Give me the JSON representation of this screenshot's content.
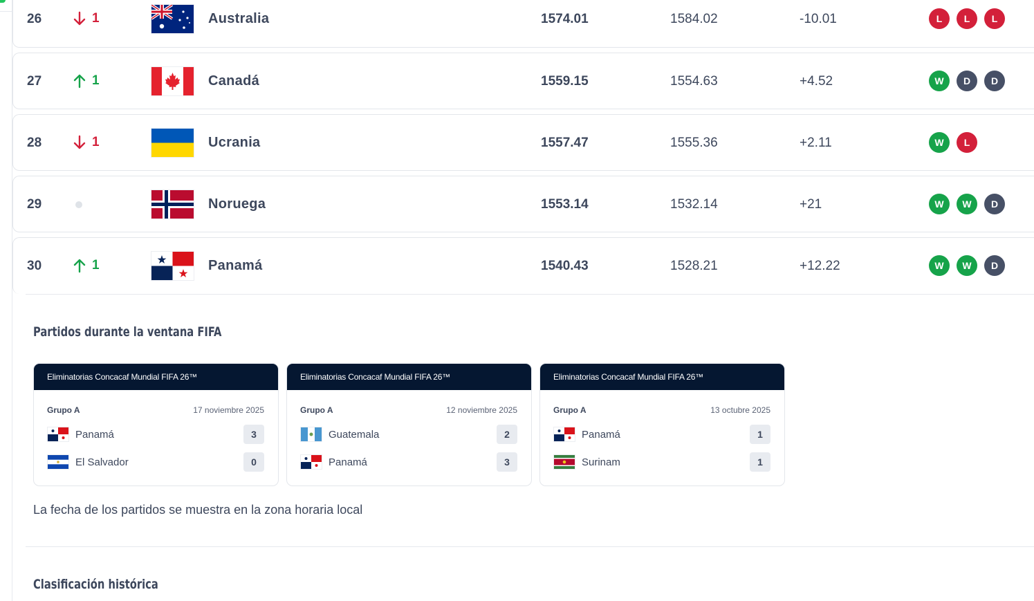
{
  "ranking_rows": [
    {
      "rank": "26",
      "move_dir": "down",
      "move_val": "1",
      "flag": "australia-flag",
      "team": "Australia",
      "points": "1574.01",
      "prev_points": "1584.02",
      "diff": "-10.01",
      "form": [
        "L",
        "L",
        "L"
      ]
    },
    {
      "rank": "27",
      "move_dir": "up",
      "move_val": "1",
      "flag": "canada-flag",
      "team": "Canadá",
      "points": "1559.15",
      "prev_points": "1554.63",
      "diff": "+4.52",
      "form": [
        "W",
        "D",
        "D"
      ]
    },
    {
      "rank": "28",
      "move_dir": "down",
      "move_val": "1",
      "flag": "ukraine-flag",
      "team": "Ucrania",
      "points": "1557.47",
      "prev_points": "1555.36",
      "diff": "+2.11",
      "form": [
        "W",
        "L"
      ]
    },
    {
      "rank": "29",
      "move_dir": "same",
      "move_val": "",
      "flag": "norway-flag",
      "team": "Noruega",
      "points": "1553.14",
      "prev_points": "1532.14",
      "diff": "+21",
      "form": [
        "W",
        "W",
        "D"
      ]
    },
    {
      "rank": "30",
      "move_dir": "up",
      "move_val": "1",
      "flag": "panama-flag",
      "team": "Panamá",
      "points": "1540.43",
      "prev_points": "1528.21",
      "diff": "+12.22",
      "form": [
        "W",
        "W",
        "D"
      ]
    }
  ],
  "matches_section": {
    "title": "Partidos durante la ventana FIFA",
    "matches": [
      {
        "competition": "Eliminatorias Concacaf Mundial FIFA 26™",
        "group": "Grupo A",
        "date": "17 noviembre 2025",
        "home": {
          "name": "Panamá",
          "flag": "panama-flag",
          "score": "3"
        },
        "away": {
          "name": "El Salvador",
          "flag": "el-salvador-flag",
          "score": "0"
        }
      },
      {
        "competition": "Eliminatorias Concacaf Mundial FIFA 26™",
        "group": "Grupo A",
        "date": "12 noviembre 2025",
        "home": {
          "name": "Guatemala",
          "flag": "guatemala-flag",
          "score": "2"
        },
        "away": {
          "name": "Panamá",
          "flag": "panama-flag",
          "score": "3"
        }
      },
      {
        "competition": "Eliminatorias Concacaf Mundial FIFA 26™",
        "group": "Grupo A",
        "date": "13 octubre 2025",
        "home": {
          "name": "Panamá",
          "flag": "panama-flag",
          "score": "1"
        },
        "away": {
          "name": "Surinam",
          "flag": "suriname-flag",
          "score": "1"
        }
      }
    ],
    "timezone_note": "La fecha de los partidos se muestra en la zona horaria local"
  },
  "history_section": {
    "title": "Clasificación histórica"
  },
  "colors": {
    "win": "#16a34a",
    "loss": "#d3203a",
    "draw": "#475066",
    "card_header": "#051731"
  }
}
